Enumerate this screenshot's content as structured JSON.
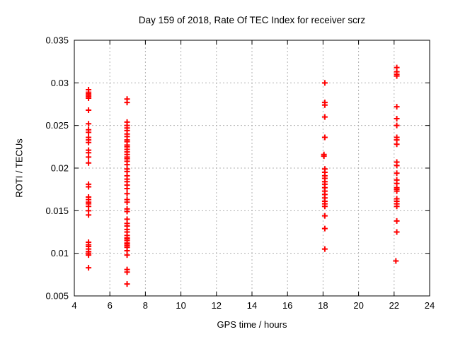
{
  "chart_data": {
    "type": "scatter",
    "title": "Day 159 of 2018, Rate Of TEC Index for receiver scrz",
    "xlabel": "GPS time / hours",
    "ylabel": "ROTI / TECUs",
    "xlim": [
      4,
      24
    ],
    "ylim": [
      0.005,
      0.035
    ],
    "xticks": {
      "values": [
        4,
        6,
        8,
        10,
        12,
        14,
        16,
        18,
        20,
        22,
        24
      ],
      "labels": [
        "4",
        "6",
        "8",
        "10",
        "12",
        "14",
        "16",
        "18",
        "20",
        "22",
        "24"
      ]
    },
    "yticks": {
      "values": [
        0.005,
        0.01,
        0.015,
        0.02,
        0.025,
        0.03,
        0.035
      ],
      "labels": [
        "0.005",
        "0.01",
        "0.015",
        "0.02",
        "0.025",
        "0.03",
        "0.035"
      ]
    },
    "grid": true,
    "legend": "none",
    "marker": "plus",
    "marker_color": "#ff0000",
    "grid_color": "#b0b0b0",
    "border_color": "#000000",
    "series": [
      {
        "name": "ROTI",
        "points": [
          [
            4.8,
            0.0292
          ],
          [
            4.8,
            0.0289
          ],
          [
            4.8,
            0.0287
          ],
          [
            4.8,
            0.0285
          ],
          [
            4.8,
            0.0284
          ],
          [
            4.8,
            0.0282
          ],
          [
            4.8,
            0.0268
          ],
          [
            4.8,
            0.0252
          ],
          [
            4.8,
            0.0245
          ],
          [
            4.8,
            0.0242
          ],
          [
            4.8,
            0.0236
          ],
          [
            4.8,
            0.0233
          ],
          [
            4.8,
            0.023
          ],
          [
            4.8,
            0.0221
          ],
          [
            4.8,
            0.0218
          ],
          [
            4.8,
            0.0213
          ],
          [
            4.8,
            0.0206
          ],
          [
            4.8,
            0.0181
          ],
          [
            4.8,
            0.0178
          ],
          [
            4.8,
            0.0166
          ],
          [
            4.8,
            0.0163
          ],
          [
            4.8,
            0.016
          ],
          [
            4.8,
            0.0158
          ],
          [
            4.8,
            0.0155
          ],
          [
            4.8,
            0.015
          ],
          [
            4.8,
            0.0145
          ],
          [
            4.8,
            0.0113
          ],
          [
            4.8,
            0.011
          ],
          [
            4.8,
            0.0108
          ],
          [
            4.8,
            0.0105
          ],
          [
            4.8,
            0.0102
          ],
          [
            4.8,
            0.01
          ],
          [
            4.8,
            0.0098
          ],
          [
            4.8,
            0.0083
          ],
          [
            6.97,
            0.0281
          ],
          [
            6.97,
            0.0277
          ],
          [
            6.97,
            0.0254
          ],
          [
            6.97,
            0.025
          ],
          [
            6.97,
            0.0247
          ],
          [
            6.97,
            0.0244
          ],
          [
            6.97,
            0.024
          ],
          [
            6.97,
            0.0237
          ],
          [
            6.97,
            0.0233
          ],
          [
            6.97,
            0.0231
          ],
          [
            6.97,
            0.0227
          ],
          [
            6.97,
            0.0225
          ],
          [
            6.97,
            0.0222
          ],
          [
            6.97,
            0.0219
          ],
          [
            6.97,
            0.0216
          ],
          [
            6.97,
            0.0213
          ],
          [
            6.97,
            0.0211
          ],
          [
            6.97,
            0.0208
          ],
          [
            6.97,
            0.0204
          ],
          [
            6.97,
            0.0199
          ],
          [
            6.97,
            0.0196
          ],
          [
            6.97,
            0.0191
          ],
          [
            6.97,
            0.0187
          ],
          [
            6.97,
            0.0184
          ],
          [
            6.97,
            0.018
          ],
          [
            6.97,
            0.0176
          ],
          [
            6.97,
            0.017
          ],
          [
            6.97,
            0.0163
          ],
          [
            6.97,
            0.016
          ],
          [
            6.97,
            0.0152
          ],
          [
            6.97,
            0.0149
          ],
          [
            6.97,
            0.014
          ],
          [
            6.97,
            0.0135
          ],
          [
            6.97,
            0.0132
          ],
          [
            6.97,
            0.0128
          ],
          [
            6.97,
            0.0125
          ],
          [
            6.97,
            0.0121
          ],
          [
            6.97,
            0.0118
          ],
          [
            6.97,
            0.0117
          ],
          [
            6.97,
            0.0115
          ],
          [
            6.97,
            0.0112
          ],
          [
            6.97,
            0.0111
          ],
          [
            6.97,
            0.0109
          ],
          [
            6.97,
            0.0107
          ],
          [
            6.97,
            0.0103
          ],
          [
            6.97,
            0.0098
          ],
          [
            6.97,
            0.0081
          ],
          [
            6.97,
            0.0078
          ],
          [
            6.97,
            0.0064
          ],
          [
            18.1,
            0.03
          ],
          [
            18.1,
            0.0277
          ],
          [
            18.1,
            0.0274
          ],
          [
            18.1,
            0.026
          ],
          [
            18.1,
            0.0236
          ],
          [
            18.05,
            0.0216
          ],
          [
            18.05,
            0.0214
          ],
          [
            18.1,
            0.0199
          ],
          [
            18.1,
            0.0195
          ],
          [
            18.1,
            0.0191
          ],
          [
            18.1,
            0.0188
          ],
          [
            18.1,
            0.0184
          ],
          [
            18.1,
            0.0181
          ],
          [
            18.1,
            0.0177
          ],
          [
            18.1,
            0.0173
          ],
          [
            18.1,
            0.0169
          ],
          [
            18.1,
            0.0165
          ],
          [
            18.1,
            0.0161
          ],
          [
            18.1,
            0.0158
          ],
          [
            18.1,
            0.0155
          ],
          [
            18.1,
            0.0144
          ],
          [
            18.1,
            0.0129
          ],
          [
            18.1,
            0.0105
          ],
          [
            22.15,
            0.0318
          ],
          [
            22.15,
            0.0313
          ],
          [
            22.15,
            0.031
          ],
          [
            22.15,
            0.0308
          ],
          [
            22.15,
            0.0272
          ],
          [
            22.15,
            0.0258
          ],
          [
            22.15,
            0.025
          ],
          [
            22.15,
            0.0236
          ],
          [
            22.15,
            0.0233
          ],
          [
            22.15,
            0.0228
          ],
          [
            22.15,
            0.0207
          ],
          [
            22.15,
            0.0203
          ],
          [
            22.15,
            0.0194
          ],
          [
            22.15,
            0.0186
          ],
          [
            22.15,
            0.0182
          ],
          [
            22.15,
            0.0177
          ],
          [
            22.15,
            0.0175
          ],
          [
            22.15,
            0.0173
          ],
          [
            22.15,
            0.0164
          ],
          [
            22.15,
            0.0161
          ],
          [
            22.15,
            0.0158
          ],
          [
            22.15,
            0.0155
          ],
          [
            22.15,
            0.0138
          ],
          [
            22.15,
            0.0125
          ],
          [
            22.1,
            0.0091
          ]
        ]
      }
    ]
  }
}
